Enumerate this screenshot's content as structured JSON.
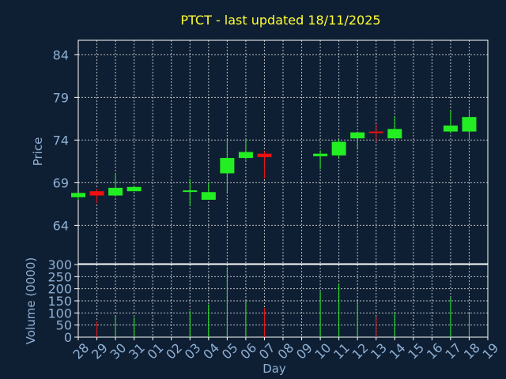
{
  "title": "PTCT - last updated 18/11/2025",
  "colors": {
    "background": "#0f1f33",
    "title": "#ffff33",
    "text": "#8fb0d4",
    "up": "#22ee22",
    "down": "#ee1111",
    "grid": "#ffffff",
    "frame": "#ffffff"
  },
  "chart_data": [
    {
      "type": "candlestick",
      "ylabel": "Price",
      "ylim": [
        59.5,
        85.7
      ],
      "yticks": [
        84,
        79,
        74,
        69,
        64
      ],
      "grid": true,
      "series": [
        {
          "x": 0,
          "open": 67.3,
          "high": 67.8,
          "low": 67.0,
          "close": 67.8
        },
        {
          "x": 1,
          "open": 68.0,
          "high": 68.3,
          "low": 66.6,
          "close": 67.5
        },
        {
          "x": 2,
          "open": 67.5,
          "high": 70.1,
          "low": 67.4,
          "close": 68.4
        },
        {
          "x": 3,
          "open": 68.0,
          "high": 68.6,
          "low": 68.0,
          "close": 68.5
        },
        {
          "x": 6,
          "open": 68.0,
          "high": 69.4,
          "low": 66.3,
          "close": 68.1
        },
        {
          "x": 7,
          "open": 67.0,
          "high": 69.0,
          "low": 67.0,
          "close": 67.9
        },
        {
          "x": 8,
          "open": 70.1,
          "high": 74.0,
          "low": 67.8,
          "close": 71.9
        },
        {
          "x": 9,
          "open": 71.9,
          "high": 74.2,
          "low": 71.7,
          "close": 72.6
        },
        {
          "x": 10,
          "open": 72.4,
          "high": 72.7,
          "low": 69.5,
          "close": 72.0
        },
        {
          "x": 13,
          "open": 72.1,
          "high": 72.8,
          "low": 70.6,
          "close": 72.4
        },
        {
          "x": 14,
          "open": 72.2,
          "high": 74.1,
          "low": 71.9,
          "close": 73.8
        },
        {
          "x": 15,
          "open": 74.2,
          "high": 75.0,
          "low": 72.9,
          "close": 74.9
        },
        {
          "x": 16,
          "open": 75.0,
          "high": 75.9,
          "low": 73.8,
          "close": 74.9
        },
        {
          "x": 17,
          "open": 74.2,
          "high": 76.8,
          "low": 74.1,
          "close": 75.3
        },
        {
          "x": 20,
          "open": 75.0,
          "high": 77.5,
          "low": 74.8,
          "close": 75.7
        },
        {
          "x": 21,
          "open": 75.0,
          "high": 77.6,
          "low": 74.0,
          "close": 76.7
        }
      ]
    },
    {
      "type": "bar",
      "xlabel": "Day",
      "ylabel": "Volume (0000)",
      "ylim": [
        0,
        300
      ],
      "yticks": [
        300,
        250,
        200,
        150,
        100,
        50,
        0
      ],
      "grid": true,
      "categories": [
        "28",
        "29",
        "30",
        "31",
        "01",
        "02",
        "03",
        "04",
        "05",
        "06",
        "07",
        "08",
        "09",
        "10",
        "11",
        "12",
        "13",
        "14",
        "15",
        "16",
        "17",
        "18",
        "19"
      ],
      "values": [
        {
          "x": 1,
          "value": 65,
          "direction": "down"
        },
        {
          "x": 2,
          "value": 85,
          "direction": "up"
        },
        {
          "x": 3,
          "value": 82,
          "direction": "up"
        },
        {
          "x": 6,
          "value": 108,
          "direction": "up"
        },
        {
          "x": 7,
          "value": 135,
          "direction": "up"
        },
        {
          "x": 8,
          "value": 290,
          "direction": "up"
        },
        {
          "x": 9,
          "value": 150,
          "direction": "up"
        },
        {
          "x": 10,
          "value": 120,
          "direction": "down"
        },
        {
          "x": 13,
          "value": 188,
          "direction": "up"
        },
        {
          "x": 14,
          "value": 220,
          "direction": "up"
        },
        {
          "x": 15,
          "value": 148,
          "direction": "up"
        },
        {
          "x": 16,
          "value": 85,
          "direction": "down"
        },
        {
          "x": 17,
          "value": 100,
          "direction": "up"
        },
        {
          "x": 20,
          "value": 163,
          "direction": "up"
        },
        {
          "x": 21,
          "value": 100,
          "direction": "up"
        }
      ]
    }
  ]
}
